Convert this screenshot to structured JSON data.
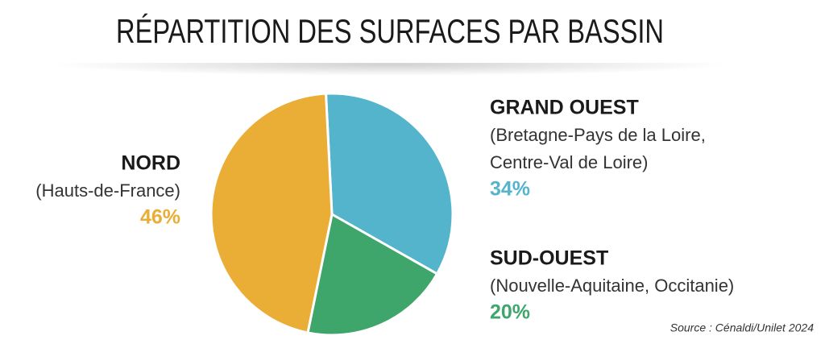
{
  "chart_data": {
    "type": "pie",
    "title": "RÉPARTITION DES SURFACES PAR BASSIN",
    "categories": [
      "GRAND OUEST",
      "SUD-OUEST",
      "NORD"
    ],
    "details": [
      [
        "(Bretagne-Pays de la Loire,",
        "Centre-Val de Loire)"
      ],
      [
        "(Nouvelle-Aquitaine, Occitanie)"
      ],
      [
        "(Hauts-de-France)"
      ]
    ],
    "values": [
      34,
      20,
      46
    ],
    "value_labels": [
      "34%",
      "20%",
      "46%"
    ],
    "colors": [
      "#54b4cc",
      "#3ea66b",
      "#eaad35"
    ],
    "source": "Source : Cénaldi/Unilet 2024"
  }
}
